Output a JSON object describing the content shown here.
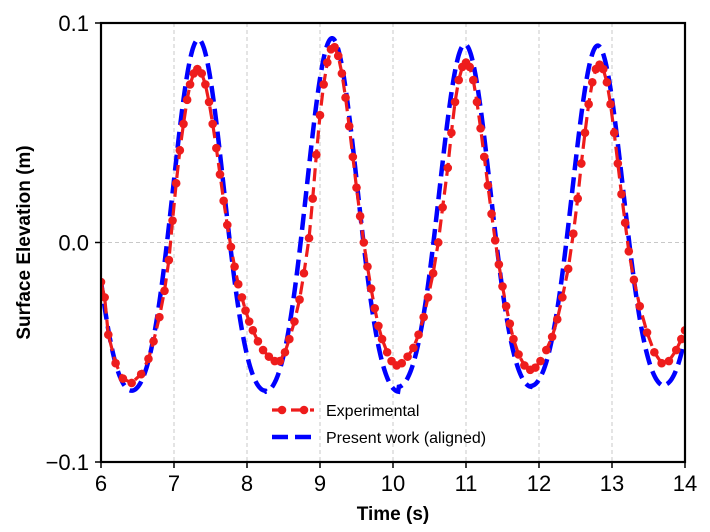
{
  "chart_data": {
    "type": "line",
    "title": "",
    "xlabel": "Time (s)",
    "ylabel": "Surface Elevation (m)",
    "xlim": [
      6,
      14
    ],
    "ylim": [
      -0.1,
      0.1
    ],
    "xticks": [
      6,
      7,
      8,
      9,
      10,
      11,
      12,
      13,
      14
    ],
    "xtick_labels": [
      "6",
      "7",
      "8",
      "9",
      "10",
      "11",
      "12",
      "13",
      "14"
    ],
    "yticks": [
      -0.1,
      0.0,
      0.1
    ],
    "ytick_labels": [
      "−0.1",
      "0.0",
      "0.1"
    ],
    "grid": true,
    "legend_position": "lower-center",
    "series": [
      {
        "name": "Experimental",
        "color": "#ee1c1c",
        "style": "dashed-with-circle-markers",
        "x": [
          6.0,
          6.05,
          6.1,
          6.2,
          6.3,
          6.42,
          6.55,
          6.65,
          6.72,
          6.8,
          6.87,
          6.93,
          6.98,
          7.03,
          7.08,
          7.13,
          7.18,
          7.22,
          7.27,
          7.32,
          7.38,
          7.43,
          7.48,
          7.53,
          7.58,
          7.63,
          7.68,
          7.73,
          7.78,
          7.83,
          7.88,
          7.93,
          7.98,
          8.03,
          8.08,
          8.15,
          8.22,
          8.3,
          8.38,
          8.45,
          8.52,
          8.58,
          8.65,
          8.72,
          8.78,
          8.85,
          8.9,
          8.95,
          9.0,
          9.05,
          9.1,
          9.15,
          9.2,
          9.25,
          9.3,
          9.35,
          9.4,
          9.45,
          9.5,
          9.55,
          9.6,
          9.65,
          9.7,
          9.75,
          9.8,
          9.85,
          9.92,
          9.98,
          10.05,
          10.12,
          10.2,
          10.28,
          10.35,
          10.42,
          10.48,
          10.55,
          10.62,
          10.68,
          10.75,
          10.8,
          10.85,
          10.9,
          10.95,
          11.0,
          11.05,
          11.1,
          11.15,
          11.2,
          11.25,
          11.3,
          11.35,
          11.4,
          11.45,
          11.5,
          11.55,
          11.6,
          11.65,
          11.72,
          11.8,
          11.88,
          11.95,
          12.02,
          12.1,
          12.18,
          12.25,
          12.32,
          12.4,
          12.47,
          12.53,
          12.58,
          12.63,
          12.68,
          12.73,
          12.78,
          12.83,
          12.88,
          12.93,
          12.98,
          13.03,
          13.08,
          13.13,
          13.18,
          13.23,
          13.3,
          13.38,
          13.48,
          13.58,
          13.68,
          13.78,
          13.88,
          13.95,
          14.0
        ],
        "y": [
          -0.018,
          -0.025,
          -0.042,
          -0.055,
          -0.062,
          -0.064,
          -0.06,
          -0.053,
          -0.045,
          -0.034,
          -0.022,
          -0.008,
          0.01,
          0.027,
          0.042,
          0.054,
          0.065,
          0.072,
          0.077,
          0.079,
          0.077,
          0.072,
          0.064,
          0.054,
          0.043,
          0.031,
          0.019,
          0.008,
          -0.002,
          -0.011,
          -0.019,
          -0.025,
          -0.031,
          -0.036,
          -0.04,
          -0.045,
          -0.049,
          -0.052,
          -0.054,
          -0.054,
          -0.05,
          -0.044,
          -0.036,
          -0.026,
          -0.014,
          0.002,
          0.02,
          0.04,
          0.058,
          0.072,
          0.082,
          0.088,
          0.089,
          0.085,
          0.077,
          0.066,
          0.053,
          0.039,
          0.025,
          0.012,
          0.0,
          -0.011,
          -0.021,
          -0.03,
          -0.038,
          -0.044,
          -0.05,
          -0.054,
          -0.056,
          -0.055,
          -0.052,
          -0.048,
          -0.042,
          -0.034,
          -0.025,
          -0.014,
          0.0,
          0.016,
          0.034,
          0.05,
          0.064,
          0.074,
          0.08,
          0.082,
          0.08,
          0.074,
          0.064,
          0.052,
          0.039,
          0.026,
          0.013,
          0.001,
          -0.01,
          -0.02,
          -0.029,
          -0.037,
          -0.044,
          -0.051,
          -0.056,
          -0.058,
          -0.057,
          -0.054,
          -0.049,
          -0.043,
          -0.035,
          -0.025,
          -0.012,
          0.004,
          0.02,
          0.036,
          0.05,
          0.063,
          0.073,
          0.079,
          0.081,
          0.079,
          0.073,
          0.063,
          0.05,
          0.036,
          0.022,
          0.009,
          -0.004,
          -0.017,
          -0.029,
          -0.041,
          -0.05,
          -0.055,
          -0.054,
          -0.049,
          -0.044,
          -0.04
        ]
      },
      {
        "name": "Present work (aligned)",
        "color": "#0000ff",
        "style": "dashed",
        "model": {
          "kind": "stokes-second-order",
          "period_s": 1.83,
          "trough_times_s": [
            6.42,
            8.25,
            10.07,
            11.89,
            13.71
          ],
          "amplitude_m": [
            0.08,
            0.0805,
            0.078,
            0.0775,
            0.077
          ],
          "harmonic_ratio": 0.125
        }
      }
    ]
  }
}
